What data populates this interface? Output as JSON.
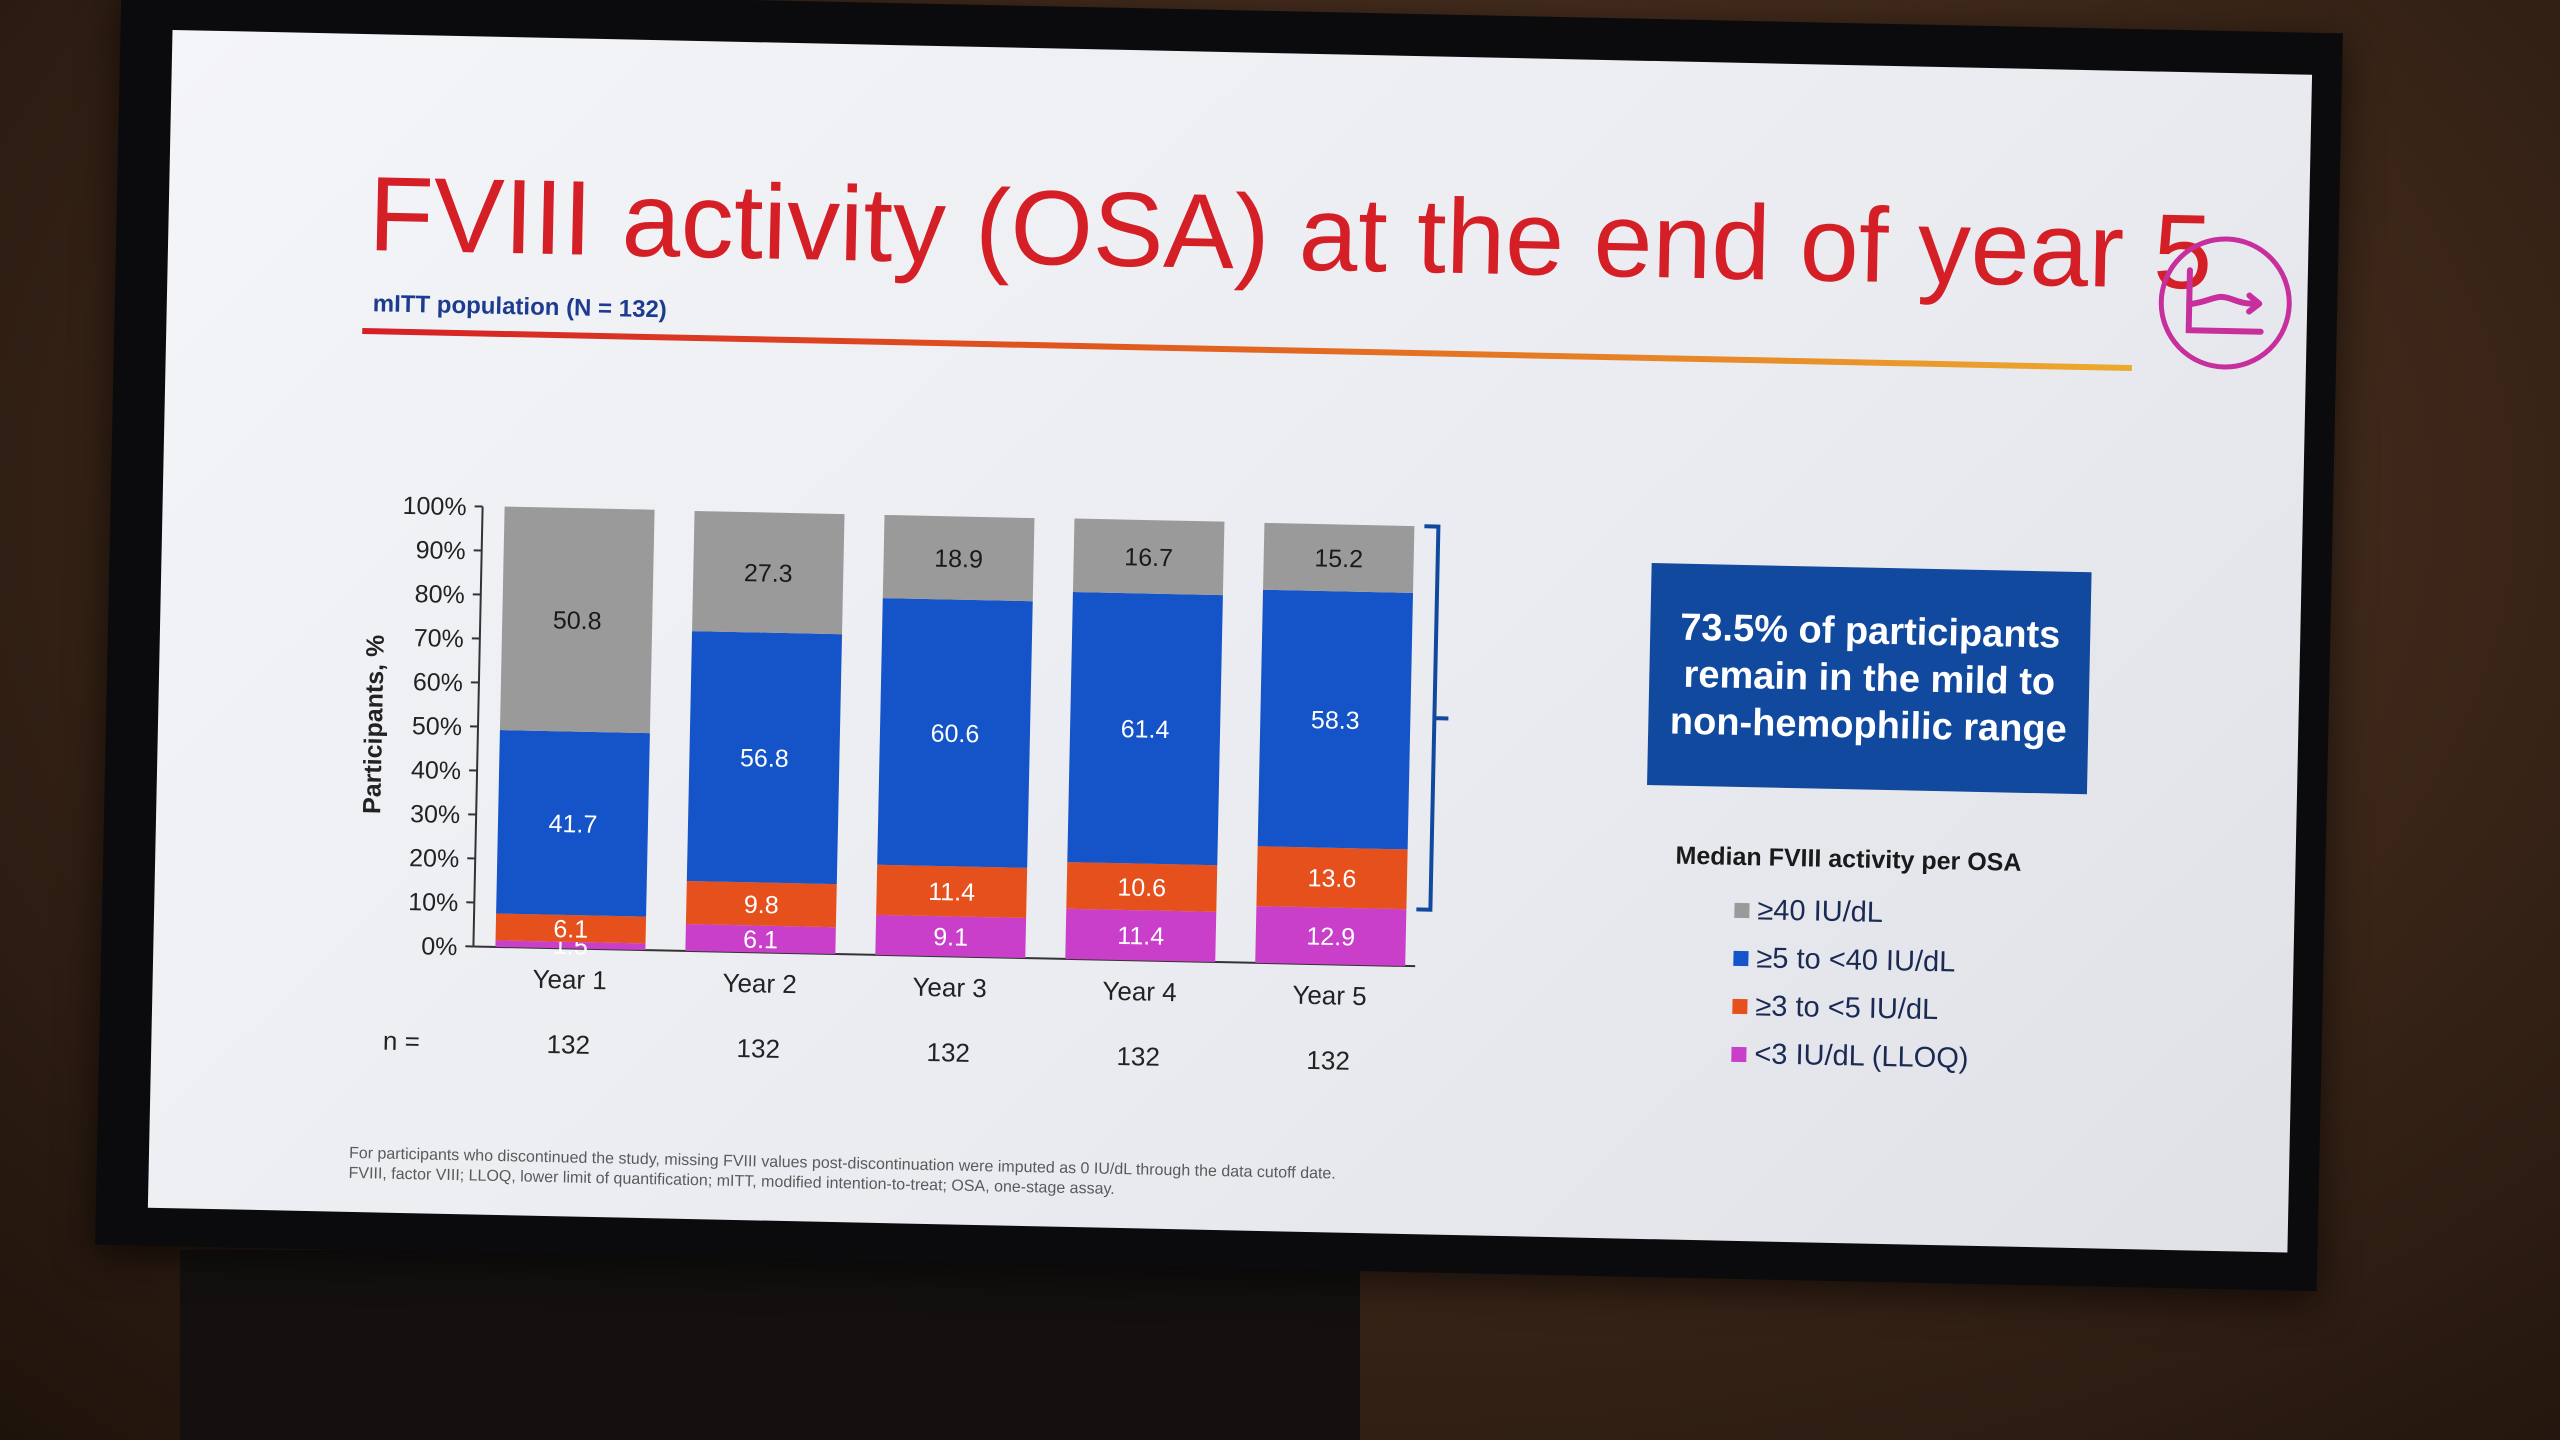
{
  "slide": {
    "title": "FVIII activity (OSA) at the end of year 5",
    "subtitle": "mITT population (N = 132)",
    "callout": "73.5% of participants remain in the mild to non-hemophilic range",
    "legend_title": "Median FVIII activity per OSA",
    "n_label": "n =",
    "footnotes": [
      "For participants who discontinued the study, missing FVIII values post-discontinuation were imputed as  0 IU/dL through the data cutoff date.",
      "FVIII, factor VIII; LLOQ, lower limit of quantification; mITT, modified intention-to-treat; OSA, one-stage assay."
    ],
    "logo_icon": "chart-line-arrow-icon"
  },
  "colors": {
    "title": "#d51f26",
    "subtitle": "#1d3c8f",
    "callout_bg": "#11499f",
    "logo": "#c62f9c"
  },
  "chart_data": {
    "type": "bar",
    "stacked": true,
    "categories": [
      "Year 1",
      "Year 2",
      "Year 3",
      "Year 4",
      "Year 5"
    ],
    "n": [
      "132",
      "132",
      "132",
      "132",
      "132"
    ],
    "series": [
      {
        "name": "<3 IU/dL (LLOQ)",
        "color": "#c93fc9",
        "values": [
          1.5,
          6.1,
          9.1,
          11.4,
          12.9
        ]
      },
      {
        "name": "≥3 to <5 IU/dL",
        "color": "#e5501c",
        "values": [
          6.1,
          9.8,
          11.4,
          10.6,
          13.6
        ]
      },
      {
        "name": "≥5 to <40 IU/dL",
        "color": "#1553c8",
        "values": [
          41.7,
          56.8,
          60.6,
          61.4,
          58.3
        ]
      },
      {
        "name": "≥40 IU/dL",
        "color": "#9a9a9a",
        "values": [
          50.8,
          27.3,
          18.9,
          16.7,
          15.2
        ]
      }
    ],
    "ylabel": "Participants, %",
    "ylim": [
      0,
      100
    ],
    "yticks": [
      "0%",
      "10%",
      "20%",
      "30%",
      "40%",
      "50%",
      "60%",
      "70%",
      "80%",
      "90%",
      "100%"
    ],
    "legend_order": [
      "≥40 IU/dL",
      "≥5 to <40 IU/dL",
      "≥3 to <5 IU/dL",
      "<3 IU/dL (LLOQ)"
    ],
    "grid": false,
    "bracket": "Year 5, from bottom of ≥3 to <5 IU/dL to top of ≥40 IU/dL"
  }
}
